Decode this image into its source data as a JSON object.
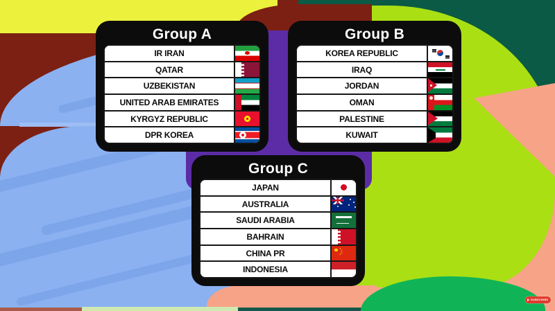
{
  "groups": [
    {
      "title": "Group A",
      "teams": [
        {
          "name": "IR IRAN",
          "flag": "iran-flag"
        },
        {
          "name": "QATAR",
          "flag": "qatar-flag"
        },
        {
          "name": "UZBEKISTAN",
          "flag": "uzbekistan-flag"
        },
        {
          "name": "UNITED ARAB EMIRATES",
          "flag": "uae-flag"
        },
        {
          "name": "KYRGYZ REPUBLIC",
          "flag": "kyrgyz-republic-flag"
        },
        {
          "name": "DPR KOREA",
          "flag": "dpr-korea-flag"
        }
      ]
    },
    {
      "title": "Group B",
      "teams": [
        {
          "name": "KOREA REPUBLIC",
          "flag": "korea-republic-flag"
        },
        {
          "name": "IRAQ",
          "flag": "iraq-flag"
        },
        {
          "name": "JORDAN",
          "flag": "jordan-flag"
        },
        {
          "name": "OMAN",
          "flag": "oman-flag"
        },
        {
          "name": "PALESTINE",
          "flag": "palestine-flag"
        },
        {
          "name": "KUWAIT",
          "flag": "kuwait-flag"
        }
      ]
    },
    {
      "title": "Group C",
      "teams": [
        {
          "name": "JAPAN",
          "flag": "japan-flag"
        },
        {
          "name": "AUSTRALIA",
          "flag": "australia-flag"
        },
        {
          "name": "SAUDI ARABIA",
          "flag": "saudi-arabia-flag"
        },
        {
          "name": "BAHRAIN",
          "flag": "bahrain-flag"
        },
        {
          "name": "CHINA PR",
          "flag": "china-pr-flag"
        },
        {
          "name": "INDONESIA",
          "flag": "indonesia-flag"
        }
      ]
    }
  ],
  "watermark": {
    "label": "SUBSCRIBE"
  },
  "colors": {
    "panel_black": "#0c0c0c",
    "bg_maroon": "#7c2013",
    "bg_yellow": "#ecf23c",
    "bg_light_blue": "#8bb1f1",
    "bg_purple": "#5b2ca6",
    "bg_dark_green": "#0b5a45",
    "bg_lime": "#aadf13",
    "bg_salmon": "#f7a388",
    "bg_emerald": "#10b457",
    "subscribe_red": "#e03a2f"
  }
}
